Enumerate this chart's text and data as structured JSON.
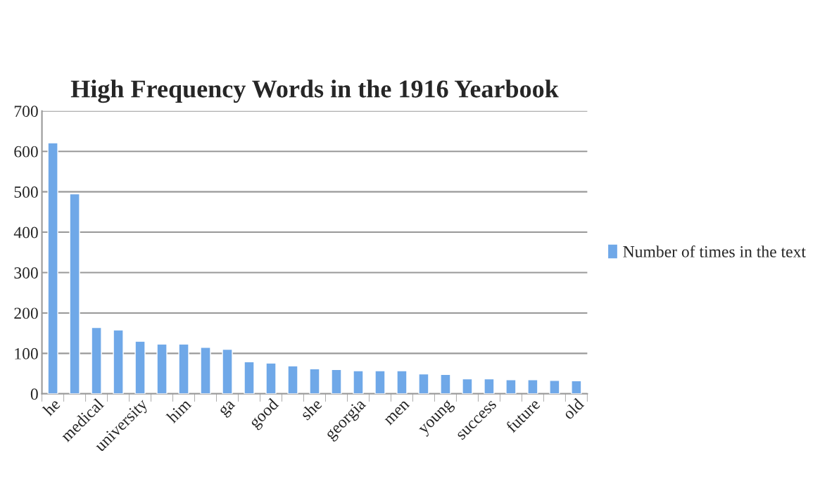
{
  "chart_data": {
    "type": "bar",
    "title": "High Frequency Words in the 1916 Yearbook",
    "categories": [
      "he",
      null,
      "medical",
      null,
      "university",
      null,
      "him",
      null,
      "ga",
      null,
      "good",
      null,
      "she",
      null,
      "georgia",
      null,
      "men",
      null,
      "young",
      null,
      "success",
      null,
      "future",
      null,
      "old"
    ],
    "series": [
      {
        "name": "Number of times in the text",
        "color": "#6fa8e8",
        "values": [
          621,
          495,
          164,
          158,
          130,
          123,
          123,
          115,
          110,
          79,
          76,
          69,
          62,
          60,
          57,
          57,
          57,
          49,
          48,
          37,
          37,
          35,
          35,
          33,
          32
        ]
      }
    ],
    "ylim": [
      0,
      700
    ],
    "yticks": [
      0,
      100,
      200,
      300,
      400,
      500,
      600,
      700
    ],
    "grid": "y",
    "legend": "right"
  }
}
